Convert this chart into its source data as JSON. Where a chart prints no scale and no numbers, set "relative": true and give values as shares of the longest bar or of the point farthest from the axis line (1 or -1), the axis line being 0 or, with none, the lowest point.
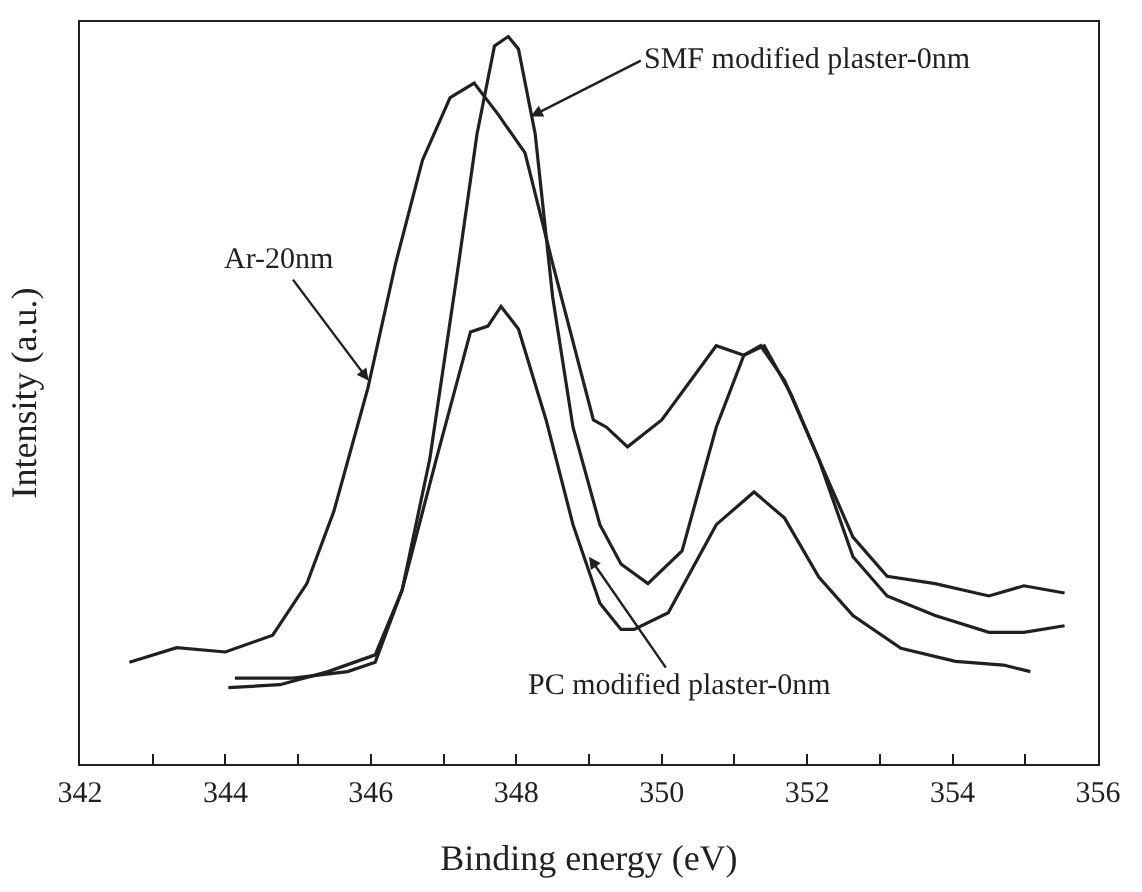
{
  "chart_data": {
    "type": "line",
    "relative": true,
    "xlabel": "Binding energy (eV)",
    "ylabel": "Intensity (a.u.)",
    "xlim": [
      342,
      356
    ],
    "xticks": [
      342,
      {
        "value": 343,
        "label": null
      },
      344,
      {
        "value": 345,
        "label": null
      },
      346,
      {
        "value": 347,
        "label": null
      },
      348,
      {
        "value": 349,
        "label": null
      },
      350,
      {
        "value": 351,
        "label": null
      },
      352,
      {
        "value": 353,
        "label": null
      },
      354,
      {
        "value": 355,
        "label": null
      },
      356
    ],
    "marker": "none",
    "line_style": "solid",
    "series": [
      {
        "color": "#231f20",
        "x": [
          342.68,
          343.33,
          344.0,
          344.65,
          345.12,
          345.49,
          345.96,
          346.34,
          346.71,
          347.09,
          347.42,
          347.75,
          348.12,
          348.5,
          349.06,
          349.24,
          349.53,
          350.0,
          350.75,
          351.13,
          351.36,
          351.69,
          352.16,
          352.63,
          353.1,
          353.76,
          354.5,
          354.98,
          355.54
        ],
        "values": [
          0.14,
          0.16,
          0.154,
          0.177,
          0.248,
          0.347,
          0.517,
          0.688,
          0.83,
          0.916,
          0.936,
          0.893,
          0.84,
          0.688,
          0.473,
          0.463,
          0.436,
          0.473,
          0.575,
          0.562,
          0.575,
          0.527,
          0.419,
          0.312,
          0.258,
          0.248,
          0.231,
          0.245,
          0.235
        ]
      },
      {
        "color": "#231f20",
        "x": [
          344.13,
          344.93,
          345.68,
          346.06,
          346.43,
          346.81,
          347.18,
          347.46,
          347.7,
          347.89,
          348.03,
          348.26,
          348.5,
          348.78,
          349.15,
          349.44,
          349.81,
          350.28,
          350.75,
          351.13,
          351.41,
          351.78,
          352.16,
          352.63,
          353.1,
          353.76,
          354.5,
          354.98,
          355.54
        ],
        "values": [
          0.118,
          0.118,
          0.127,
          0.14,
          0.239,
          0.419,
          0.669,
          0.866,
          0.987,
          1,
          0.983,
          0.866,
          0.642,
          0.463,
          0.329,
          0.275,
          0.248,
          0.293,
          0.463,
          0.562,
          0.575,
          0.508,
          0.419,
          0.285,
          0.231,
          0.204,
          0.181,
          0.181,
          0.19
        ]
      },
      {
        "color": "#231f20",
        "x": [
          344.04,
          344.75,
          345.41,
          346.06,
          346.43,
          346.9,
          347.37,
          347.61,
          347.79,
          348.03,
          348.41,
          348.78,
          349.15,
          349.44,
          349.62,
          350.09,
          350.75,
          351.27,
          351.69,
          352.16,
          352.63,
          353.29,
          354.04,
          354.7,
          355.07
        ],
        "values": [
          0.105,
          0.109,
          0.127,
          0.15,
          0.239,
          0.419,
          0.594,
          0.602,
          0.629,
          0.598,
          0.473,
          0.329,
          0.221,
          0.185,
          0.185,
          0.208,
          0.329,
          0.374,
          0.338,
          0.257,
          0.204,
          0.159,
          0.141,
          0.136,
          0.127
        ]
      }
    ],
    "annotations": [
      {
        "text": "SMF modified plaster-0nm",
        "x": 348.2,
        "y": 0.89
      },
      {
        "text": "Ar-20nm",
        "x": 345.97,
        "y": 0.527
      },
      {
        "text": "PC modified plaster-0nm",
        "x": 349.0,
        "y": 0.285
      }
    ]
  }
}
